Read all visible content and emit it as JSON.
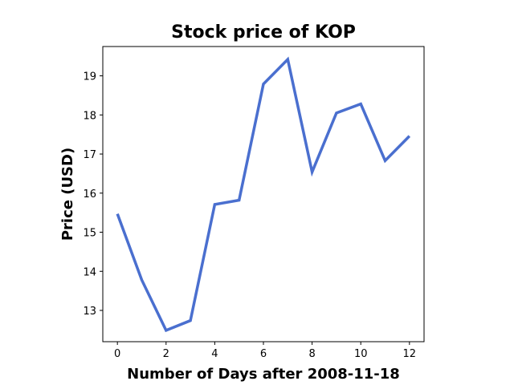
{
  "chart_data": {
    "type": "line",
    "title": "Stock price of KOP",
    "xlabel": "Number of Days after 2008-11-18",
    "ylabel": "Price (USD)",
    "xlim": [
      -0.6,
      12.6
    ],
    "ylim": [
      12.2,
      19.75
    ],
    "xticks": [
      0,
      2,
      4,
      6,
      8,
      10,
      12
    ],
    "yticks": [
      13,
      14,
      15,
      16,
      17,
      18,
      19
    ],
    "grid": false,
    "legend": "none",
    "series": [
      {
        "color": "#4a6fcf",
        "x": [
          0,
          1,
          2,
          3,
          4,
          5,
          6,
          7,
          8,
          9,
          10,
          11,
          12
        ],
        "y": [
          15.47,
          13.78,
          12.49,
          12.74,
          15.71,
          15.82,
          18.79,
          19.42,
          16.54,
          18.05,
          18.28,
          16.83,
          17.46
        ]
      }
    ]
  }
}
